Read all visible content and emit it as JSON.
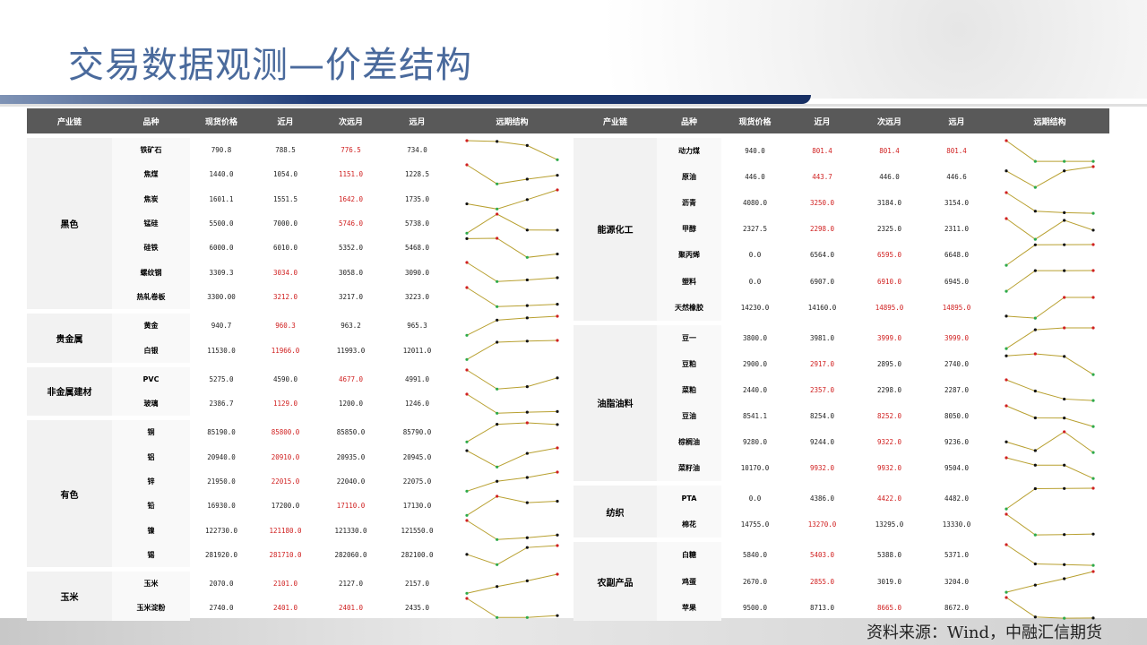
{
  "title": "交易数据观测—价差结构",
  "source": "资料来源：Wind，中融汇信期货",
  "colors": {
    "header_bg": "#595959",
    "max_point": "#d02020",
    "min_point": "#2eaa4a",
    "line": "#b8a030",
    "highlight_text": "#d02020"
  },
  "columns": [
    "产业链",
    "品种",
    "现货价格",
    "近月",
    "次远月",
    "远月",
    "远期结构"
  ],
  "left_table": [
    {
      "group": "黑色",
      "rows": [
        {
          "name": "铁矿石",
          "values": [
            "790.8",
            "788.5",
            "776.5",
            "734.0"
          ],
          "red": [
            2
          ]
        },
        {
          "name": "焦煤",
          "values": [
            "1440.0",
            "1054.0",
            "1151.0",
            "1228.5"
          ],
          "red": [
            2
          ]
        },
        {
          "name": "焦炭",
          "values": [
            "1601.1",
            "1551.5",
            "1642.0",
            "1735.0"
          ],
          "red": [
            2
          ]
        },
        {
          "name": "锰硅",
          "values": [
            "5500.0",
            "7000.0",
            "5746.0",
            "5738.0"
          ],
          "red": [
            2
          ]
        },
        {
          "name": "硅铁",
          "values": [
            "6000.0",
            "6010.0",
            "5352.0",
            "5468.0"
          ],
          "red": []
        },
        {
          "name": "螺纹钢",
          "values": [
            "3309.3",
            "3034.0",
            "3058.0",
            "3090.0"
          ],
          "red": [
            1
          ]
        },
        {
          "name": "热轧卷板",
          "values": [
            "3300.00",
            "3212.0",
            "3217.0",
            "3223.0"
          ],
          "red": [
            1
          ]
        }
      ]
    },
    {
      "group": "贵金属",
      "rows": [
        {
          "name": "黄金",
          "values": [
            "940.7",
            "960.3",
            "963.2",
            "965.3"
          ],
          "red": [
            1
          ]
        },
        {
          "name": "白银",
          "values": [
            "11530.0",
            "11966.0",
            "11993.0",
            "12011.0"
          ],
          "red": [
            1
          ]
        }
      ]
    },
    {
      "group": "非金属建材",
      "rows": [
        {
          "name": "PVC",
          "values": [
            "5275.0",
            "4590.0",
            "4677.0",
            "4991.0"
          ],
          "red": [
            2
          ]
        },
        {
          "name": "玻璃",
          "values": [
            "2386.7",
            "1129.0",
            "1200.0",
            "1246.0"
          ],
          "red": [
            1
          ]
        }
      ]
    },
    {
      "group": "有色",
      "rows": [
        {
          "name": "铜",
          "values": [
            "85190.0",
            "85800.0",
            "85850.0",
            "85790.0"
          ],
          "red": [
            1
          ]
        },
        {
          "name": "铝",
          "values": [
            "20940.0",
            "20910.0",
            "20935.0",
            "20945.0"
          ],
          "red": [
            1
          ]
        },
        {
          "name": "锌",
          "values": [
            "21950.0",
            "22015.0",
            "22040.0",
            "22075.0"
          ],
          "red": [
            1
          ]
        },
        {
          "name": "铅",
          "values": [
            "16930.0",
            "17200.0",
            "17110.0",
            "17130.0"
          ],
          "red": [
            2
          ]
        },
        {
          "name": "镍",
          "values": [
            "122730.0",
            "121180.0",
            "121330.0",
            "121550.0"
          ],
          "red": [
            1
          ]
        },
        {
          "name": "锡",
          "values": [
            "281920.0",
            "281710.0",
            "282060.0",
            "282100.0"
          ],
          "red": [
            1
          ]
        }
      ]
    },
    {
      "group": "玉米",
      "rows": [
        {
          "name": "玉米",
          "values": [
            "2070.0",
            "2101.0",
            "2127.0",
            "2157.0"
          ],
          "red": [
            1
          ]
        },
        {
          "name": "玉米淀粉",
          "values": [
            "2740.0",
            "2401.0",
            "2401.0",
            "2435.0"
          ],
          "red": [
            1,
            2
          ]
        }
      ]
    }
  ],
  "right_table": [
    {
      "group": "能源化工",
      "rows": [
        {
          "name": "动力煤",
          "values": [
            "940.0",
            "801.4",
            "801.4",
            "801.4"
          ],
          "red": [
            1,
            2,
            3
          ]
        },
        {
          "name": "原油",
          "values": [
            "446.0",
            "443.7",
            "446.0",
            "446.6"
          ],
          "red": [
            1
          ]
        },
        {
          "name": "沥青",
          "values": [
            "4080.0",
            "3250.0",
            "3184.0",
            "3154.0"
          ],
          "red": [
            1
          ]
        },
        {
          "name": "甲醇",
          "values": [
            "2327.5",
            "2298.0",
            "2325.0",
            "2311.0"
          ],
          "red": [
            1
          ]
        },
        {
          "name": "聚丙烯",
          "values": [
            "0.0",
            "6564.0",
            "6595.0",
            "6648.0"
          ],
          "red": [
            2
          ]
        },
        {
          "name": "塑料",
          "values": [
            "0.0",
            "6907.0",
            "6910.0",
            "6945.0"
          ],
          "red": [
            2
          ]
        },
        {
          "name": "天然橡胶",
          "values": [
            "14230.0",
            "14160.0",
            "14895.0",
            "14895.0"
          ],
          "red": [
            2,
            3
          ]
        }
      ]
    },
    {
      "group": "油脂油料",
      "rows": [
        {
          "name": "豆一",
          "values": [
            "3800.0",
            "3981.0",
            "3999.0",
            "3999.0"
          ],
          "red": [
            2,
            3
          ]
        },
        {
          "name": "豆粕",
          "values": [
            "2900.0",
            "2917.0",
            "2895.0",
            "2740.0"
          ],
          "red": [
            1
          ]
        },
        {
          "name": "菜粕",
          "values": [
            "2440.0",
            "2357.0",
            "2298.0",
            "2287.0"
          ],
          "red": [
            1
          ]
        },
        {
          "name": "豆油",
          "values": [
            "8541.1",
            "8254.0",
            "8252.0",
            "8050.0"
          ],
          "red": [
            2
          ]
        },
        {
          "name": "棕榈油",
          "values": [
            "9280.0",
            "9244.0",
            "9322.0",
            "9236.0"
          ],
          "red": [
            2
          ]
        },
        {
          "name": "菜籽油",
          "values": [
            "10170.0",
            "9932.0",
            "9932.0",
            "9504.0"
          ],
          "red": [
            1,
            2
          ]
        }
      ]
    },
    {
      "group": "纺织",
      "rows": [
        {
          "name": "PTA",
          "values": [
            "0.0",
            "4386.0",
            "4422.0",
            "4482.0"
          ],
          "red": [
            2
          ]
        },
        {
          "name": "棉花",
          "values": [
            "14755.0",
            "13270.0",
            "13295.0",
            "13330.0"
          ],
          "red": [
            1
          ]
        }
      ]
    },
    {
      "group": "农副产品",
      "rows": [
        {
          "name": "白糖",
          "values": [
            "5840.0",
            "5403.0",
            "5388.0",
            "5371.0"
          ],
          "red": [
            1
          ]
        },
        {
          "name": "鸡蛋",
          "values": [
            "2670.0",
            "2855.0",
            "3019.0",
            "3204.0"
          ],
          "red": [
            1
          ]
        },
        {
          "name": "苹果",
          "values": [
            "9500.0",
            "8713.0",
            "8665.0",
            "8672.0"
          ],
          "red": [
            2
          ]
        }
      ]
    }
  ]
}
